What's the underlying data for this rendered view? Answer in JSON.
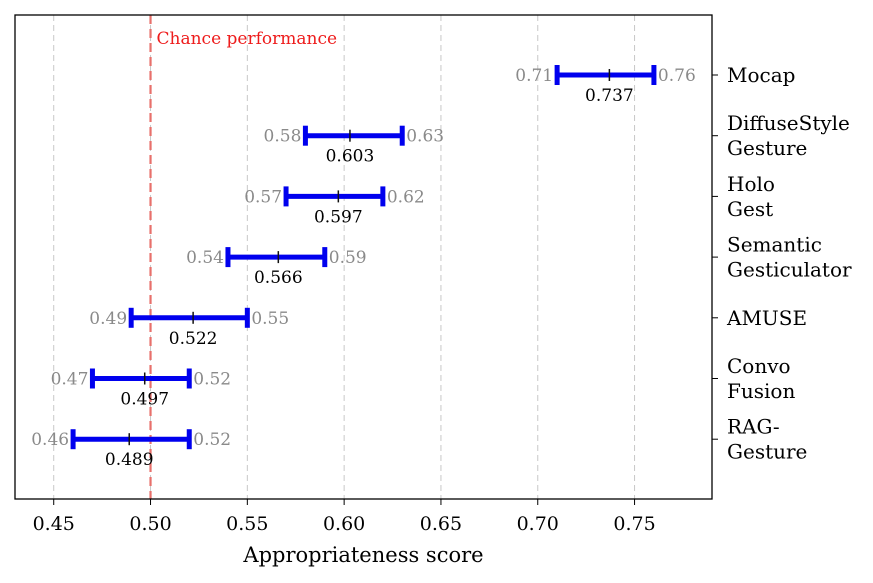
{
  "chart_data": {
    "type": "errorbar",
    "xlabel": "Appropriateness score",
    "xlim": [
      0.43,
      0.79
    ],
    "xticks": [
      0.45,
      0.5,
      0.55,
      0.6,
      0.65,
      0.7,
      0.75
    ],
    "xtick_labels": [
      "0.45",
      "0.50",
      "0.55",
      "0.60",
      "0.65",
      "0.70",
      "0.75"
    ],
    "grid": "vertical-dashed",
    "bar_color": "#0000ee",
    "reference_line": {
      "x": 0.5,
      "label": "Chance performance",
      "color": "#e8706b",
      "label_color": "#ee1c1c"
    },
    "items": [
      {
        "label_lines": [
          "Mocap"
        ],
        "mean": 0.737,
        "low": 0.71,
        "high": 0.76,
        "mean_label": "0.737",
        "low_label": "0.71",
        "high_label": "0.76"
      },
      {
        "label_lines": [
          "DiffuseStyle",
          "Gesture"
        ],
        "mean": 0.603,
        "low": 0.58,
        "high": 0.63,
        "mean_label": "0.603",
        "low_label": "0.58",
        "high_label": "0.63"
      },
      {
        "label_lines": [
          "Holo",
          "Gest"
        ],
        "mean": 0.597,
        "low": 0.57,
        "high": 0.62,
        "mean_label": "0.597",
        "low_label": "0.57",
        "high_label": "0.62"
      },
      {
        "label_lines": [
          "Semantic",
          "Gesticulator"
        ],
        "mean": 0.566,
        "low": 0.54,
        "high": 0.59,
        "mean_label": "0.566",
        "low_label": "0.54",
        "high_label": "0.59"
      },
      {
        "label_lines": [
          "AMUSE"
        ],
        "mean": 0.522,
        "low": 0.49,
        "high": 0.55,
        "mean_label": "0.522",
        "low_label": "0.49",
        "high_label": "0.55"
      },
      {
        "label_lines": [
          "Convo",
          "Fusion"
        ],
        "mean": 0.497,
        "low": 0.47,
        "high": 0.52,
        "mean_label": "0.497",
        "low_label": "0.47",
        "high_label": "0.52"
      },
      {
        "label_lines": [
          "RAG-",
          "Gesture"
        ],
        "mean": 0.489,
        "low": 0.46,
        "high": 0.52,
        "mean_label": "0.489",
        "low_label": "0.46",
        "high_label": "0.52"
      }
    ]
  }
}
